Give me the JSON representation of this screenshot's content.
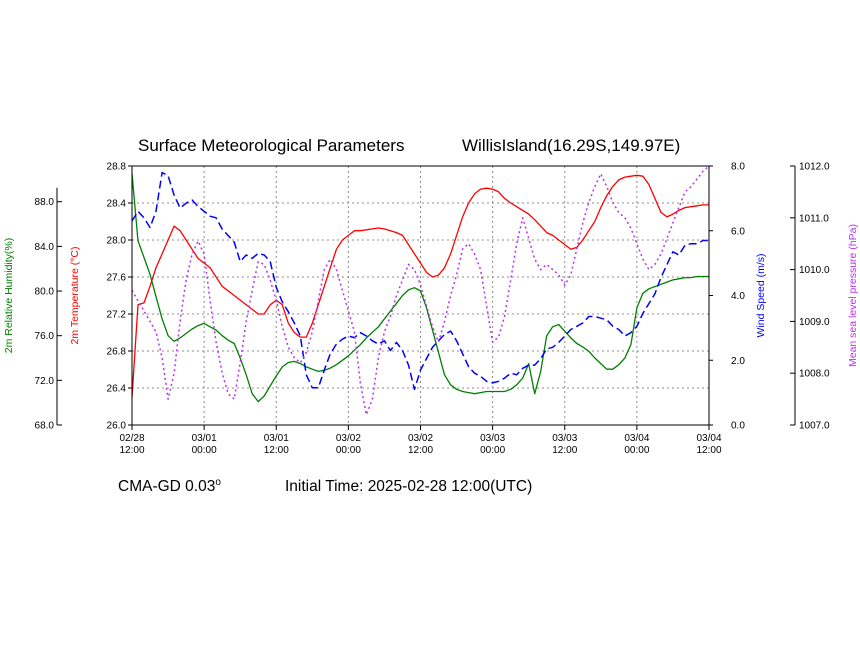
{
  "chart_data": {
    "type": "line",
    "title": "Surface Meteorological Parameters",
    "station": "WillisIsland(16.29S,149.97E)",
    "model": "CMA-GD 0.03",
    "model_degree": "o",
    "initial_time": "Initial Time: 2025-02-28 12:00(UTC)",
    "x_tick_labels": [
      {
        "date": "02/28",
        "time": "12:00"
      },
      {
        "date": "03/01",
        "time": "00:00"
      },
      {
        "date": "03/01",
        "time": "12:00"
      },
      {
        "date": "03/02",
        "time": "00:00"
      },
      {
        "date": "03/02",
        "time": "12:00"
      },
      {
        "date": "03/03",
        "time": "00:00"
      },
      {
        "date": "03/03",
        "time": "12:00"
      },
      {
        "date": "03/04",
        "time": "00:00"
      },
      {
        "date": "03/04",
        "time": "12:00"
      }
    ],
    "xlim": [
      0,
      96
    ],
    "grid": true,
    "axes": {
      "temperature": {
        "label": "2m Temperature (°C)",
        "color": "#ff0000",
        "ylim": [
          26.0,
          28.8
        ],
        "ticks": [
          "26.0",
          "26.4",
          "26.8",
          "27.2",
          "27.6",
          "28.0",
          "28.4",
          "28.8"
        ]
      },
      "humidity": {
        "label": "2m Relative Humidity(%)",
        "color": "#008000",
        "ylim": [
          68.0,
          91.2
        ],
        "ticks": [
          "68.0",
          "72.0",
          "76.0",
          "80.0",
          "84.0",
          "88.0"
        ]
      },
      "wind": {
        "label": "Wind Speed (m/s)",
        "color": "#0000ff",
        "ylim": [
          0.0,
          8.0
        ],
        "ticks": [
          "0.0",
          "2.0",
          "4.0",
          "6.0",
          "8.0"
        ]
      },
      "pressure": {
        "label": "Mean sea level pressure (hPa)",
        "color": "#b92ff5",
        "ylim": [
          1007.0,
          1012.0
        ],
        "ticks": [
          "1007.0",
          "1008.0",
          "1009.0",
          "1010.0",
          "1011.0",
          "1012.0"
        ]
      }
    },
    "series": [
      {
        "name": "2m Temperature (°C)",
        "axis": "temperature",
        "color": "#ff0000",
        "style": "solid",
        "x": [
          0,
          1,
          2,
          3,
          4,
          5,
          6,
          7,
          8,
          9,
          10,
          11,
          12,
          13,
          14,
          15,
          16,
          17,
          18,
          19,
          20,
          21,
          22,
          23,
          24,
          25,
          26,
          27,
          28,
          29,
          30,
          31,
          32,
          33,
          34,
          35,
          36,
          37,
          38,
          39,
          40,
          41,
          42,
          43,
          44,
          45,
          46,
          47,
          48,
          49,
          50,
          51,
          52,
          53,
          54,
          55,
          56,
          57,
          58,
          59,
          60,
          61,
          62,
          63,
          64,
          65,
          66,
          67,
          68,
          69,
          70,
          71,
          72,
          73,
          74,
          75,
          76,
          77,
          78,
          79,
          80,
          81,
          82,
          83,
          84,
          85,
          86,
          87,
          88,
          89,
          90,
          91,
          92,
          93,
          94,
          95,
          96
        ],
        "values": [
          26.3,
          27.3,
          27.32,
          27.5,
          27.7,
          27.85,
          28.0,
          28.15,
          28.1,
          28.0,
          27.9,
          27.8,
          27.75,
          27.7,
          27.6,
          27.5,
          27.45,
          27.4,
          27.35,
          27.3,
          27.25,
          27.2,
          27.2,
          27.3,
          27.35,
          27.3,
          27.1,
          27.0,
          26.95,
          26.95,
          27.1,
          27.3,
          27.5,
          27.7,
          27.9,
          28.0,
          28.05,
          28.1,
          28.1,
          28.11,
          28.12,
          28.13,
          28.12,
          28.1,
          28.08,
          28.05,
          27.95,
          27.85,
          27.75,
          27.65,
          27.6,
          27.62,
          27.7,
          27.85,
          28.05,
          28.25,
          28.4,
          28.5,
          28.55,
          28.56,
          28.55,
          28.52,
          28.45,
          28.4,
          28.36,
          28.32,
          28.28,
          28.22,
          28.15,
          28.08,
          28.05,
          28.0,
          27.95,
          27.9,
          27.92,
          28.0,
          28.1,
          28.2,
          28.35,
          28.48,
          28.58,
          28.65,
          28.68,
          28.69,
          28.7,
          28.69,
          28.6,
          28.45,
          28.3,
          28.25,
          28.28,
          28.32,
          28.35,
          28.36,
          28.37,
          28.38,
          28.38
        ]
      },
      {
        "name": "2m Relative Humidity(%)",
        "axis": "humidity",
        "color": "#008000",
        "style": "solid",
        "x": [
          0,
          1,
          2,
          3,
          4,
          5,
          6,
          7,
          8,
          9,
          10,
          11,
          12,
          13,
          14,
          15,
          16,
          17,
          18,
          19,
          20,
          21,
          22,
          23,
          24,
          25,
          26,
          27,
          28,
          29,
          30,
          31,
          32,
          33,
          34,
          35,
          36,
          37,
          38,
          39,
          40,
          41,
          42,
          43,
          44,
          45,
          46,
          47,
          48,
          49,
          50,
          51,
          52,
          53,
          54,
          55,
          56,
          57,
          58,
          59,
          60,
          61,
          62,
          63,
          64,
          65,
          66,
          67,
          68,
          69,
          70,
          71,
          72,
          73,
          74,
          75,
          76,
          77,
          78,
          79,
          80,
          81,
          82,
          83,
          84,
          85,
          86,
          87,
          88,
          89,
          90,
          91,
          92,
          93,
          94,
          95,
          96
        ],
        "values": [
          90.5,
          84.5,
          83.0,
          81.5,
          79.5,
          77.5,
          76.0,
          75.5,
          75.8,
          76.2,
          76.6,
          76.9,
          77.1,
          76.8,
          76.5,
          76.0,
          75.6,
          75.3,
          74.0,
          72.5,
          70.8,
          70.1,
          70.6,
          71.5,
          72.4,
          73.2,
          73.6,
          73.7,
          73.5,
          73.2,
          73.0,
          72.8,
          72.9,
          73.1,
          73.4,
          73.8,
          74.2,
          74.7,
          75.2,
          75.8,
          76.3,
          76.8,
          77.5,
          78.2,
          78.9,
          79.6,
          80.1,
          80.3,
          80.0,
          78.5,
          76.5,
          74.5,
          72.5,
          71.6,
          71.2,
          71.0,
          70.9,
          70.8,
          70.9,
          71.0,
          71.0,
          71.0,
          71.0,
          71.2,
          71.6,
          72.2,
          73.5,
          70.8,
          72.8,
          76.0,
          76.8,
          77.0,
          76.4,
          75.8,
          75.3,
          75.0,
          74.6,
          74.0,
          73.5,
          73.0,
          73.0,
          73.4,
          74.0,
          75.2,
          78.5,
          79.8,
          80.2,
          80.4,
          80.6,
          80.8,
          81.0,
          81.1,
          81.2,
          81.2,
          81.3,
          81.3,
          81.3
        ]
      },
      {
        "name": "Wind Speed (m/s)",
        "axis": "wind",
        "color": "#0000ff",
        "style": "dashed",
        "x": [
          0,
          1,
          2,
          3,
          4,
          5,
          6,
          7,
          8,
          9,
          10,
          11,
          12,
          13,
          14,
          15,
          16,
          17,
          18,
          19,
          20,
          21,
          22,
          23,
          24,
          25,
          26,
          27,
          28,
          29,
          30,
          31,
          32,
          33,
          34,
          35,
          36,
          37,
          38,
          39,
          40,
          41,
          42,
          43,
          44,
          45,
          46,
          47,
          48,
          49,
          50,
          51,
          52,
          53,
          54,
          55,
          56,
          57,
          58,
          59,
          60,
          61,
          62,
          63,
          64,
          65,
          66,
          67,
          68,
          69,
          70,
          71,
          72,
          73,
          74,
          75,
          76,
          77,
          78,
          79,
          80,
          81,
          82,
          83,
          84,
          85,
          86,
          87,
          88,
          89,
          90,
          91,
          92,
          93,
          94,
          95,
          96
        ],
        "values": [
          6.3,
          6.6,
          6.4,
          6.1,
          6.6,
          7.8,
          7.7,
          7.1,
          6.7,
          6.85,
          6.95,
          6.75,
          6.6,
          6.45,
          6.4,
          6.05,
          5.85,
          5.65,
          5.05,
          5.25,
          5.15,
          5.3,
          5.25,
          5.05,
          4.25,
          3.8,
          3.5,
          3.15,
          2.75,
          1.55,
          1.15,
          1.15,
          1.7,
          2.2,
          2.5,
          2.65,
          2.75,
          2.7,
          2.85,
          2.75,
          2.6,
          2.5,
          2.6,
          2.3,
          2.55,
          2.3,
          1.85,
          1.1,
          1.7,
          2.05,
          2.4,
          2.6,
          2.8,
          2.9,
          2.6,
          2.2,
          1.8,
          1.6,
          1.5,
          1.35,
          1.3,
          1.35,
          1.45,
          1.6,
          1.55,
          1.75,
          1.85,
          1.85,
          2.05,
          2.35,
          2.4,
          2.55,
          2.75,
          2.95,
          3.05,
          3.15,
          3.35,
          3.35,
          3.3,
          3.25,
          3.05,
          2.95,
          2.75,
          2.85,
          3.05,
          3.45,
          3.75,
          4.05,
          4.55,
          4.95,
          5.35,
          5.25,
          5.55,
          5.6,
          5.6,
          5.7,
          5.7
        ]
      },
      {
        "name": "Mean sea level pressure (hPa)",
        "axis": "pressure",
        "color": "#b92ff5",
        "style": "dotted",
        "x": [
          0,
          1,
          2,
          3,
          4,
          5,
          6,
          7,
          8,
          9,
          10,
          11,
          12,
          13,
          14,
          15,
          16,
          17,
          18,
          19,
          20,
          21,
          22,
          23,
          24,
          25,
          26,
          27,
          28,
          29,
          30,
          31,
          32,
          33,
          34,
          35,
          36,
          37,
          38,
          39,
          40,
          41,
          42,
          43,
          44,
          45,
          46,
          47,
          48,
          49,
          50,
          51,
          52,
          53,
          54,
          55,
          56,
          57,
          58,
          59,
          60,
          61,
          62,
          63,
          64,
          65,
          66,
          67,
          68,
          69,
          70,
          71,
          72,
          73,
          74,
          75,
          76,
          77,
          78,
          79,
          80,
          81,
          82,
          83,
          84,
          85,
          86,
          87,
          88,
          89,
          90,
          91,
          92,
          93,
          94,
          95,
          96
        ],
        "values": [
          1009.6,
          1009.4,
          1009.2,
          1009.0,
          1008.8,
          1008.3,
          1007.5,
          1008.0,
          1009.0,
          1009.8,
          1010.3,
          1010.55,
          1010.3,
          1009.4,
          1008.6,
          1008.0,
          1007.6,
          1007.5,
          1008.2,
          1009.0,
          1009.6,
          1010.15,
          1010.1,
          1009.8,
          1009.4,
          1008.9,
          1008.5,
          1008.3,
          1008.2,
          1008.4,
          1008.8,
          1009.4,
          1010.0,
          1010.2,
          1010.0,
          1009.6,
          1009.2,
          1008.8,
          1007.8,
          1007.2,
          1007.5,
          1008.3,
          1008.8,
          1009.1,
          1009.5,
          1009.8,
          1010.1,
          1010.0,
          1009.7,
          1009.3,
          1008.9,
          1008.6,
          1009.0,
          1009.5,
          1009.9,
          1010.4,
          1010.5,
          1010.3,
          1010.0,
          1009.3,
          1008.6,
          1008.7,
          1009.1,
          1009.8,
          1010.5,
          1011.0,
          1010.6,
          1010.2,
          1010.0,
          1010.1,
          1010.0,
          1009.9,
          1009.7,
          1009.9,
          1010.4,
          1010.9,
          1011.3,
          1011.6,
          1011.85,
          1011.6,
          1011.3,
          1011.1,
          1011.0,
          1010.8,
          1010.5,
          1010.2,
          1010.0,
          1010.1,
          1010.3,
          1010.6,
          1010.9,
          1011.2,
          1011.5,
          1011.6,
          1011.75,
          1011.9,
          1012.0
        ]
      }
    ]
  }
}
